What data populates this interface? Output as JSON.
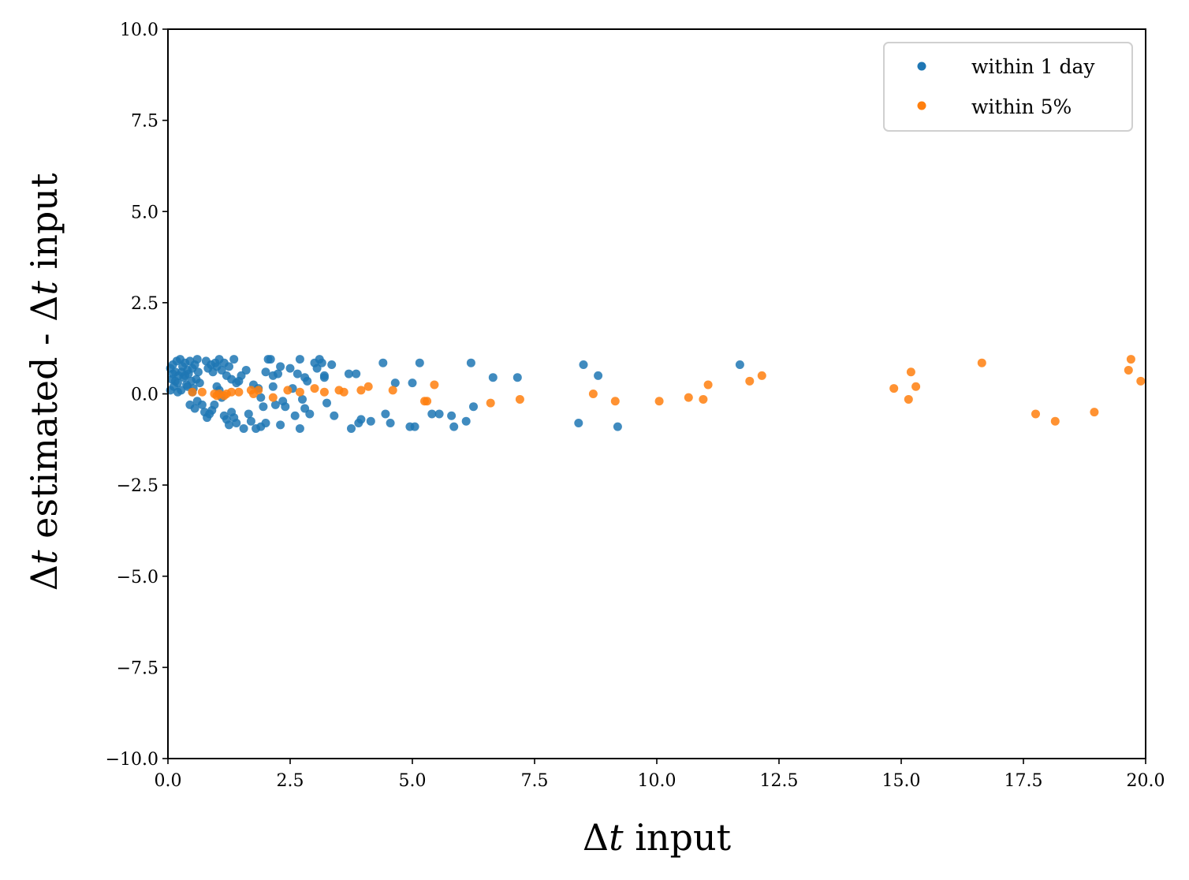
{
  "chart_data": {
    "type": "scatter",
    "title": "",
    "xlabel_delta": "Δ",
    "xlabel_var": "t",
    "xlabel_rest": " input",
    "ylabel_delta1": "Δ",
    "ylabel_var1": "t",
    "ylabel_mid": " estimated - ",
    "ylabel_delta2": "Δ",
    "ylabel_var2": "t",
    "ylabel_rest": " input",
    "xlim": [
      0,
      20
    ],
    "ylim": [
      -10,
      10
    ],
    "x_ticks": [
      0,
      2.5,
      5,
      7.5,
      10,
      12.5,
      15,
      17.5,
      20
    ],
    "x_tick_labels": [
      "0.0",
      "2.5",
      "5.0",
      "7.5",
      "10.0",
      "12.5",
      "15.0",
      "17.5",
      "20.0"
    ],
    "y_ticks": [
      10,
      7.5,
      5,
      2.5,
      0,
      -2.5,
      -5,
      -7.5,
      -10
    ],
    "y_tick_labels": [
      "10.0",
      "7.5",
      "5.0",
      "2.5",
      "0.0",
      "−2.5",
      "−5.0",
      "−7.5",
      "−10.0"
    ],
    "grid": false,
    "legend_position": "top-right",
    "series": [
      {
        "name": "within 1 day",
        "color": "#1f77b4",
        "points": [
          [
            0.05,
            0.7
          ],
          [
            0.08,
            0.4
          ],
          [
            0.1,
            0.8
          ],
          [
            0.12,
            0.2
          ],
          [
            0.15,
            0.6
          ],
          [
            0.18,
            0.9
          ],
          [
            0.2,
            0.3
          ],
          [
            0.22,
            0.5
          ],
          [
            0.25,
            0.95
          ],
          [
            0.27,
            0.1
          ],
          [
            0.3,
            0.75
          ],
          [
            0.32,
            0.45
          ],
          [
            0.35,
            0.85
          ],
          [
            0.38,
            0.25
          ],
          [
            0.4,
            0.65
          ],
          [
            0.42,
            0.55
          ],
          [
            0.45,
            0.9
          ],
          [
            0.48,
            0.35
          ],
          [
            0.5,
            0.7
          ],
          [
            0.52,
            0.15
          ],
          [
            0.55,
            0.8
          ],
          [
            0.58,
            0.4
          ],
          [
            0.6,
            0.95
          ],
          [
            0.62,
            0.6
          ],
          [
            0.65,
            0.3
          ],
          [
            0.05,
            0.1
          ],
          [
            0.1,
            0.55
          ],
          [
            0.15,
            0.35
          ],
          [
            0.2,
            0.05
          ],
          [
            0.28,
            0.6
          ],
          [
            0.35,
            0.5
          ],
          [
            0.4,
            0.2
          ],
          [
            0.45,
            -0.3
          ],
          [
            0.5,
            0.05
          ],
          [
            0.55,
            -0.4
          ],
          [
            0.6,
            -0.2
          ],
          [
            0.7,
            -0.3
          ],
          [
            0.75,
            -0.5
          ],
          [
            0.8,
            -0.65
          ],
          [
            0.85,
            -0.55
          ],
          [
            0.9,
            -0.45
          ],
          [
            0.95,
            -0.3
          ],
          [
            0.78,
            0.9
          ],
          [
            0.82,
            0.7
          ],
          [
            0.88,
            0.8
          ],
          [
            0.92,
            0.6
          ],
          [
            0.97,
            0.85
          ],
          [
            1.0,
            0.75
          ],
          [
            1.05,
            0.95
          ],
          [
            1.1,
            0.65
          ],
          [
            1.15,
            0.85
          ],
          [
            1.2,
            0.5
          ],
          [
            1.25,
            0.75
          ],
          [
            1.3,
            0.4
          ],
          [
            1.35,
            0.95
          ],
          [
            1.4,
            0.3
          ],
          [
            1.0,
            0.2
          ],
          [
            1.05,
            0.1
          ],
          [
            1.1,
            -0.1
          ],
          [
            1.15,
            -0.6
          ],
          [
            1.2,
            -0.7
          ],
          [
            1.25,
            -0.85
          ],
          [
            1.3,
            -0.5
          ],
          [
            1.35,
            -0.65
          ],
          [
            1.4,
            -0.8
          ],
          [
            1.45,
            0.35
          ],
          [
            1.5,
            0.5
          ],
          [
            1.55,
            -0.95
          ],
          [
            1.6,
            0.65
          ],
          [
            1.65,
            -0.55
          ],
          [
            1.7,
            -0.75
          ],
          [
            1.75,
            0.25
          ],
          [
            1.8,
            -0.95
          ],
          [
            1.85,
            0.15
          ],
          [
            1.9,
            -0.9
          ],
          [
            1.95,
            -0.35
          ],
          [
            2.0,
            0.6
          ],
          [
            2.05,
            0.95
          ],
          [
            2.1,
            0.95
          ],
          [
            2.15,
            0.5
          ],
          [
            2.2,
            -0.3
          ],
          [
            2.25,
            0.55
          ],
          [
            2.3,
            0.75
          ],
          [
            2.35,
            -0.2
          ],
          [
            2.4,
            -0.35
          ],
          [
            2.5,
            0.7
          ],
          [
            2.55,
            0.15
          ],
          [
            2.6,
            -0.6
          ],
          [
            2.65,
            0.55
          ],
          [
            2.7,
            0.95
          ],
          [
            2.75,
            -0.15
          ],
          [
            2.8,
            -0.4
          ],
          [
            2.85,
            0.35
          ],
          [
            2.9,
            -0.55
          ],
          [
            3.0,
            0.85
          ],
          [
            3.05,
            0.7
          ],
          [
            3.1,
            0.95
          ],
          [
            3.15,
            0.85
          ],
          [
            3.2,
            0.45
          ],
          [
            3.25,
            -0.25
          ],
          [
            3.35,
            0.8
          ],
          [
            3.4,
            -0.6
          ],
          [
            3.7,
            0.55
          ],
          [
            3.75,
            -0.95
          ],
          [
            3.85,
            0.55
          ],
          [
            3.9,
            -0.8
          ],
          [
            3.95,
            -0.7
          ],
          [
            4.15,
            -0.75
          ],
          [
            4.4,
            0.85
          ],
          [
            4.45,
            -0.55
          ],
          [
            4.55,
            -0.8
          ],
          [
            4.65,
            0.3
          ],
          [
            4.95,
            -0.9
          ],
          [
            5.0,
            0.3
          ],
          [
            5.05,
            -0.9
          ],
          [
            5.15,
            0.85
          ],
          [
            5.4,
            -0.55
          ],
          [
            5.55,
            -0.55
          ],
          [
            5.8,
            -0.6
          ],
          [
            5.85,
            -0.9
          ],
          [
            6.1,
            -0.75
          ],
          [
            6.2,
            0.85
          ],
          [
            6.25,
            -0.35
          ],
          [
            6.65,
            0.45
          ],
          [
            7.15,
            0.45
          ],
          [
            8.4,
            -0.8
          ],
          [
            8.5,
            0.8
          ],
          [
            8.8,
            0.5
          ],
          [
            9.2,
            -0.9
          ],
          [
            11.7,
            0.8
          ],
          [
            2.0,
            -0.8
          ],
          [
            2.15,
            0.2
          ],
          [
            2.3,
            -0.85
          ],
          [
            2.7,
            -0.95
          ],
          [
            3.2,
            0.5
          ],
          [
            1.9,
            -0.1
          ],
          [
            2.8,
            0.45
          ]
        ]
      },
      {
        "name": "within 5%",
        "color": "#ff7f0e",
        "points": [
          [
            0.5,
            0.05
          ],
          [
            0.7,
            0.05
          ],
          [
            0.95,
            0.0
          ],
          [
            1.0,
            -0.05
          ],
          [
            1.05,
            0.0
          ],
          [
            1.15,
            -0.05
          ],
          [
            1.2,
            0.0
          ],
          [
            1.3,
            0.05
          ],
          [
            1.45,
            0.05
          ],
          [
            1.7,
            0.1
          ],
          [
            1.75,
            0.0
          ],
          [
            1.85,
            0.1
          ],
          [
            2.15,
            -0.1
          ],
          [
            2.45,
            0.1
          ],
          [
            2.7,
            0.05
          ],
          [
            3.0,
            0.15
          ],
          [
            3.2,
            0.05
          ],
          [
            3.5,
            0.1
          ],
          [
            3.6,
            0.05
          ],
          [
            3.95,
            0.1
          ],
          [
            4.1,
            0.2
          ],
          [
            4.6,
            0.1
          ],
          [
            5.25,
            -0.2
          ],
          [
            5.3,
            -0.2
          ],
          [
            5.45,
            0.25
          ],
          [
            6.6,
            -0.25
          ],
          [
            7.2,
            -0.15
          ],
          [
            8.7,
            0.0
          ],
          [
            9.15,
            -0.2
          ],
          [
            10.05,
            -0.2
          ],
          [
            10.65,
            -0.1
          ],
          [
            10.95,
            -0.15
          ],
          [
            11.05,
            0.25
          ],
          [
            11.9,
            0.35
          ],
          [
            12.15,
            0.5
          ],
          [
            14.85,
            0.15
          ],
          [
            15.15,
            -0.15
          ],
          [
            15.2,
            0.6
          ],
          [
            15.3,
            0.2
          ],
          [
            16.65,
            0.85
          ],
          [
            17.75,
            -0.55
          ],
          [
            18.15,
            -0.75
          ],
          [
            18.95,
            -0.5
          ],
          [
            19.65,
            0.65
          ],
          [
            19.7,
            0.95
          ],
          [
            19.9,
            0.35
          ]
        ]
      }
    ]
  },
  "legend": {
    "items": [
      {
        "label": "within 1 day",
        "color": "#1f77b4"
      },
      {
        "label": "within 5%",
        "color": "#ff7f0e"
      }
    ]
  }
}
